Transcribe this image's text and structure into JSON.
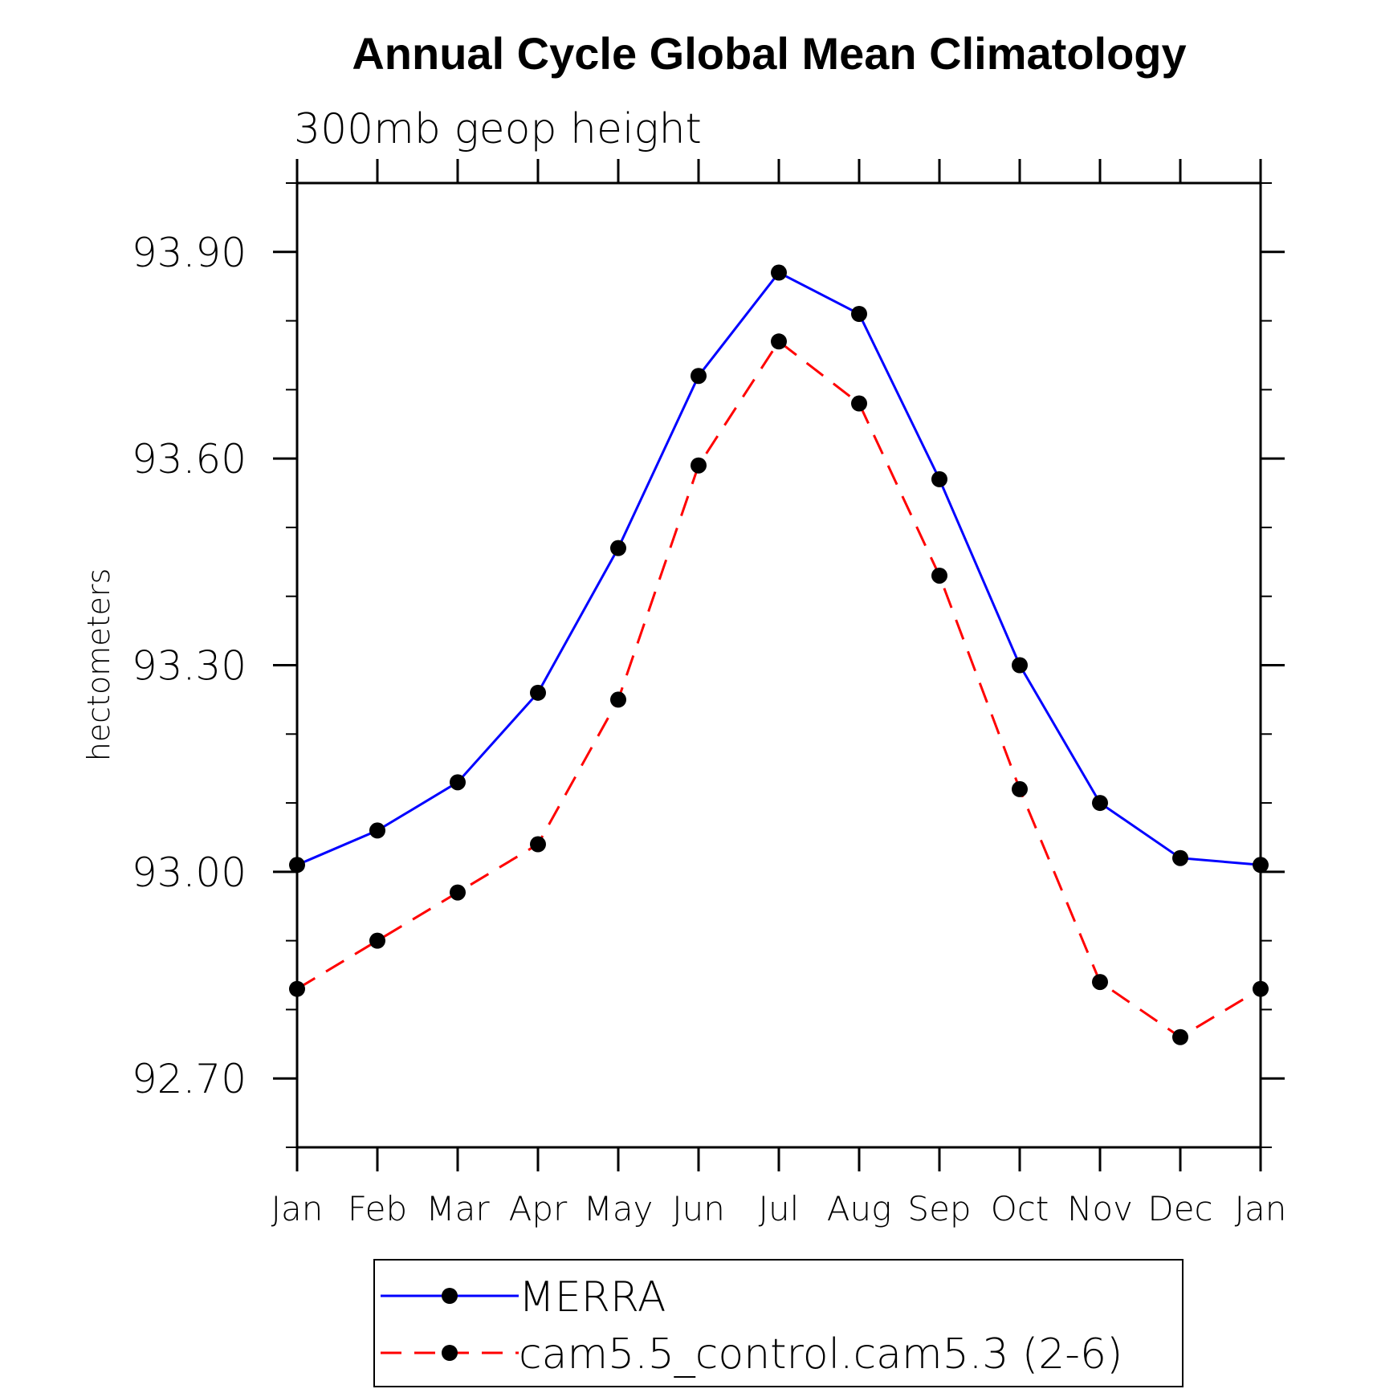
{
  "chart_data": {
    "type": "line",
    "title": "Annual Cycle Global Mean Climatology",
    "subtitle": "300mb geop height",
    "ylabel": "hectometers",
    "xlabel": "",
    "categories": [
      "Jan",
      "Feb",
      "Mar",
      "Apr",
      "May",
      "Jun",
      "Jul",
      "Aug",
      "Sep",
      "Oct",
      "Nov",
      "Dec",
      "Jan"
    ],
    "ylim": [
      92.6,
      94.0
    ],
    "yticks": [
      92.7,
      93.0,
      93.3,
      93.6,
      93.9
    ],
    "ytick_labels": [
      "92.70",
      "93.00",
      "93.30",
      "93.60",
      "93.90"
    ],
    "y_minor_step": 0.1,
    "grid": false,
    "legend_position": "bottom",
    "series": [
      {
        "name": "MERRA",
        "color": "#0000ff",
        "line_style": "solid",
        "marker": "filled-circle",
        "values": [
          93.01,
          93.06,
          93.13,
          93.26,
          93.47,
          93.72,
          93.87,
          93.81,
          93.57,
          93.3,
          93.1,
          93.02,
          93.01
        ]
      },
      {
        "name": "cam5.5_control.cam5.3 (2-6)",
        "color": "#ff0000",
        "line_style": "dashed",
        "marker": "filled-circle",
        "values": [
          92.83,
          92.9,
          92.97,
          93.04,
          93.25,
          93.59,
          93.77,
          93.68,
          93.43,
          93.12,
          92.84,
          92.76,
          92.83
        ]
      }
    ]
  }
}
